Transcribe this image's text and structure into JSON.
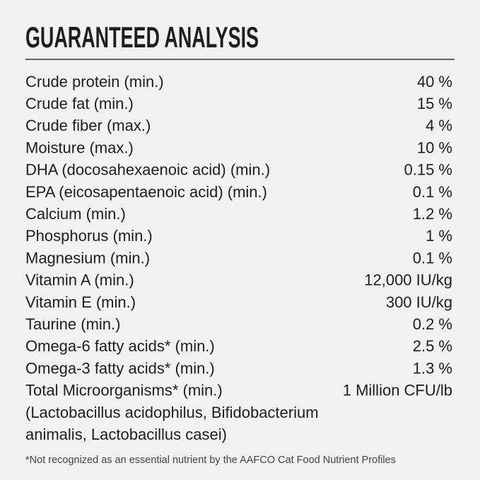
{
  "header": {
    "title": "GUARANTEED ANALYSIS"
  },
  "table": {
    "rows": [
      {
        "label": "Crude protein (min.)",
        "value": "40 %"
      },
      {
        "label": "Crude fat (min.)",
        "value": "15 %"
      },
      {
        "label": "Crude fiber (max.)",
        "value": "4 %"
      },
      {
        "label": "Moisture (max.)",
        "value": "10 %"
      },
      {
        "label": "DHA (docosahexaenoic acid) (min.)",
        "value": "0.15 %"
      },
      {
        "label": "EPA (eicosapentaenoic acid) (min.)",
        "value": "0.1 %"
      },
      {
        "label": "Calcium (min.)",
        "value": "1.2 %"
      },
      {
        "label": "Phosphorus (min.)",
        "value": "1 %"
      },
      {
        "label": "Magnesium (min.)",
        "value": "0.1 %"
      },
      {
        "label": "Vitamin A (min.)",
        "value": "12,000 IU/kg"
      },
      {
        "label": "Vitamin E (min.)",
        "value": "300 IU/kg"
      },
      {
        "label": "Taurine (min.)",
        "value": "0.2 %"
      },
      {
        "label": "Omega-6 fatty acids* (min.)",
        "value": "2.5 %"
      },
      {
        "label": "Omega-3 fatty acids* (min.)",
        "value": "1.3 %"
      },
      {
        "label": "Total Microorganisms* (min.)",
        "value": "1 Million CFU/lb"
      }
    ],
    "details": [
      "(Lactobacillus acidophilus, Bifidobacterium",
      "animalis, Lactobacillus casei)"
    ]
  },
  "footnote": "*Not recognized as an essential nutrient by the AAFCO Cat Food Nutrient Profiles"
}
